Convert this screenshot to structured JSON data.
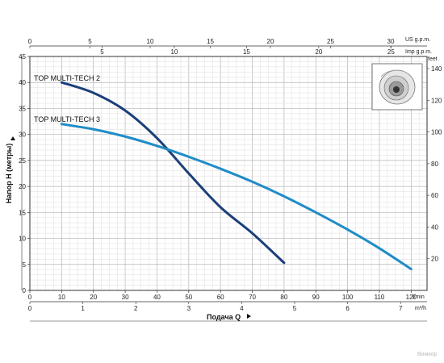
{
  "chart_data": {
    "type": "line",
    "xlabel": "Подача Q",
    "ylabel": "Напор H (метры)",
    "x_unit": "l/min",
    "xlim": [
      0,
      125
    ],
    "ylim": [
      0,
      45
    ],
    "x_ticks": [
      0,
      10,
      20,
      30,
      40,
      50,
      60,
      70,
      80,
      90,
      100,
      110,
      120
    ],
    "y_ticks": [
      0,
      5,
      10,
      15,
      20,
      25,
      30,
      35,
      40,
      45
    ],
    "grid": true,
    "series": [
      {
        "name": "TOP MULTI-TECH 2",
        "color": "#1b3f7a",
        "x": [
          10,
          20,
          30,
          40,
          50,
          60,
          70,
          80
        ],
        "y": [
          40,
          38,
          34.6,
          29.3,
          22.5,
          16,
          11,
          5.3
        ]
      },
      {
        "name": "TOP MULTI-TECH 3",
        "color": "#1f8cc8",
        "x": [
          10,
          20,
          30,
          40,
          50,
          60,
          70,
          80,
          90,
          100,
          110,
          120
        ],
        "y": [
          32,
          31,
          29.6,
          27.8,
          25.7,
          23.4,
          20.9,
          18.1,
          15,
          11.7,
          8.1,
          4.1
        ]
      }
    ],
    "secondary_axes": {
      "top_us": {
        "unit": "US g.p.m.",
        "ticks": [
          0,
          5,
          10,
          15,
          20,
          25,
          30
        ]
      },
      "top_imp": {
        "unit": "Imp g.p.m.",
        "ticks": [
          5,
          10,
          15,
          20,
          25
        ]
      },
      "bottom_m3h": {
        "unit": "m³/h",
        "ticks": [
          0,
          1,
          2,
          3,
          4,
          5,
          6,
          7
        ]
      },
      "right_feet": {
        "unit": "feet",
        "ticks": [
          20,
          40,
          60,
          80,
          100,
          120,
          140
        ]
      }
    }
  },
  "watermark": "Вимкор",
  "icons": {
    "product": "pump-impeller-icon"
  }
}
